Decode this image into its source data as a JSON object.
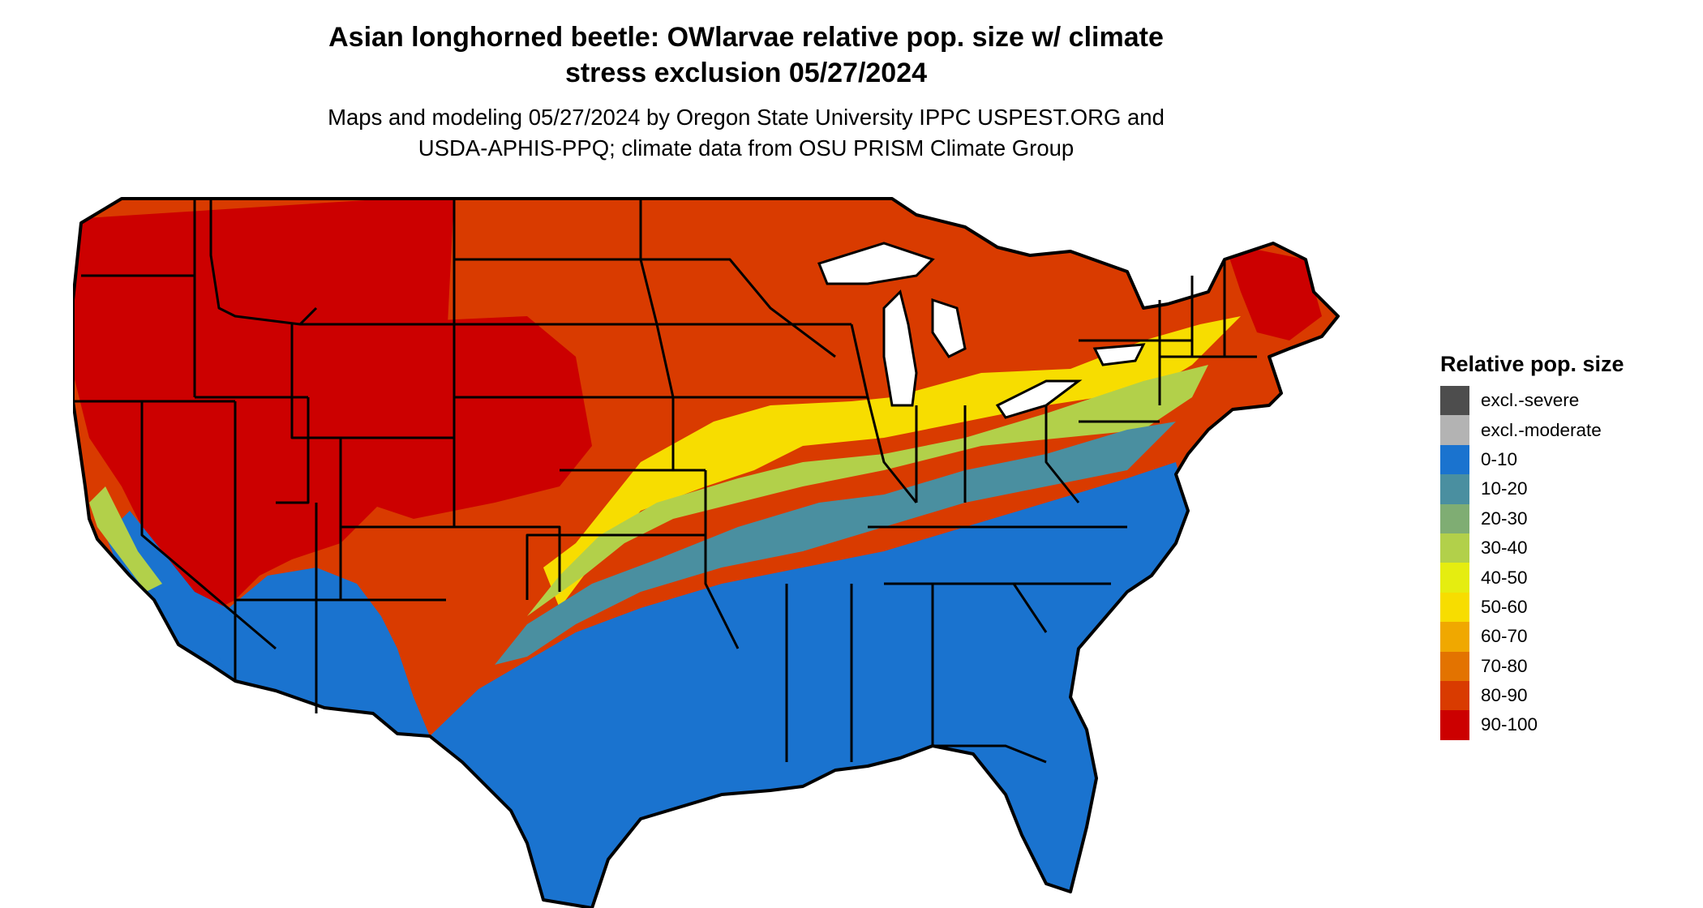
{
  "title": {
    "line1": "Asian longhorned beetle: OWlarvae relative pop. size w/ climate",
    "line2": "stress exclusion 05/27/2024"
  },
  "subtitle": {
    "line1": "Maps and modeling 05/27/2024 by Oregon State University IPPC USPEST.ORG and",
    "line2": "USDA-APHIS-PPQ; climate data from OSU PRISM Climate Group"
  },
  "legend": {
    "title": "Relative pop. size",
    "items": [
      {
        "label": "excl.-severe",
        "color": "#4d4d4d"
      },
      {
        "label": "excl.-moderate",
        "color": "#b3b3b3"
      },
      {
        "label": "0-10",
        "color": "#1a73cf"
      },
      {
        "label": "10-20",
        "color": "#4a8fa0"
      },
      {
        "label": "20-30",
        "color": "#7fad73"
      },
      {
        "label": "30-40",
        "color": "#b2d04a"
      },
      {
        "label": "40-50",
        "color": "#e5ed10"
      },
      {
        "label": "50-60",
        "color": "#f7dd00"
      },
      {
        "label": "60-70",
        "color": "#f0a800"
      },
      {
        "label": "70-80",
        "color": "#e37300"
      },
      {
        "label": "80-90",
        "color": "#d93b00"
      },
      {
        "label": "90-100",
        "color": "#cc0000"
      }
    ]
  },
  "map": {
    "region": "contiguous-united-states",
    "border_color": "#000000"
  }
}
